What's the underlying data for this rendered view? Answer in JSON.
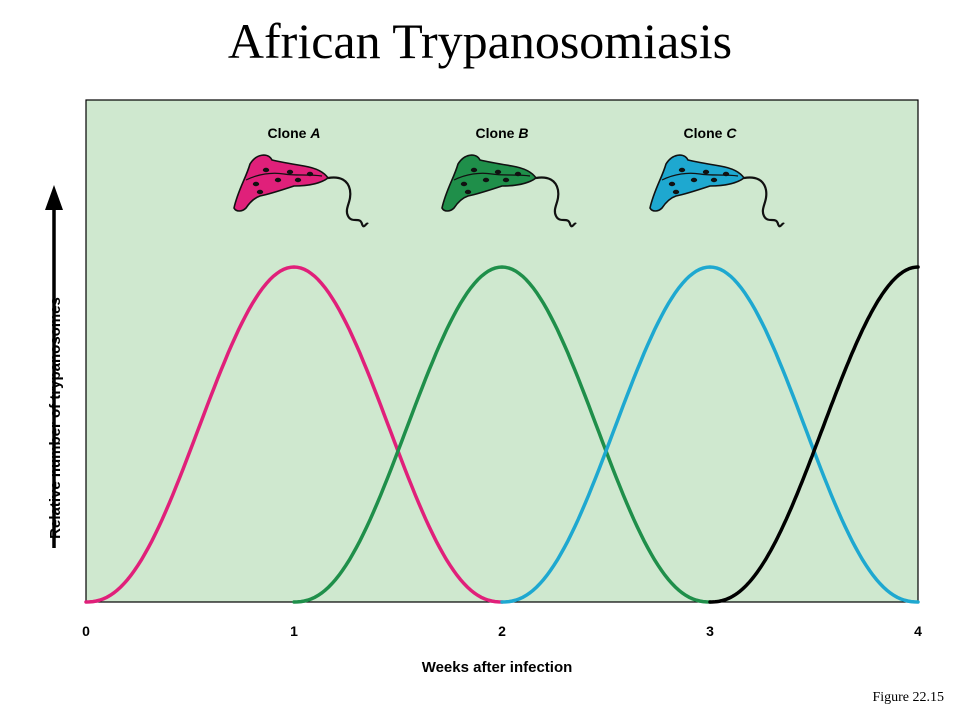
{
  "title": "African Trypanosomiasis",
  "figure_caption": "Figure 22.15",
  "colors": {
    "plot_background": "#cfe8cf",
    "clone_a": "#e0207a",
    "clone_b": "#1f8f4a",
    "clone_c": "#1ea8d0",
    "next_clone": "#000000"
  },
  "chart_data": {
    "type": "line",
    "title": "African Trypanosomiasis",
    "xlabel": "Weeks after infection",
    "ylabel": "Relative number of trypanosomes",
    "xlim": [
      0,
      4
    ],
    "ylim": [
      0,
      1
    ],
    "x_ticks": [
      "0",
      "1",
      "2",
      "3",
      "4"
    ],
    "grid": false,
    "series": [
      {
        "name": "Clone A",
        "color": "#e0207a",
        "x": [
          0,
          0.25,
          0.5,
          0.75,
          1.0,
          1.25,
          1.5,
          1.75,
          2.0
        ],
        "y": [
          0,
          0.15,
          0.5,
          0.85,
          1.0,
          0.85,
          0.5,
          0.15,
          0
        ]
      },
      {
        "name": "Clone B",
        "color": "#1f8f4a",
        "x": [
          1.0,
          1.25,
          1.5,
          1.75,
          2.0,
          2.25,
          2.5,
          2.75,
          3.0
        ],
        "y": [
          0,
          0.15,
          0.5,
          0.85,
          1.0,
          0.85,
          0.5,
          0.15,
          0
        ]
      },
      {
        "name": "Clone C",
        "color": "#1ea8d0",
        "x": [
          2.0,
          2.25,
          2.5,
          2.75,
          3.0,
          3.25,
          3.5,
          3.75,
          4.0
        ],
        "y": [
          0,
          0.15,
          0.5,
          0.85,
          1.0,
          0.85,
          0.5,
          0.15,
          0
        ]
      },
      {
        "color": "#000000",
        "x": [
          3.0,
          3.25,
          3.5,
          3.75,
          4.0
        ],
        "y": [
          0,
          0.15,
          0.5,
          0.85,
          1.0
        ]
      }
    ],
    "annotations": [
      {
        "text": "Clone A",
        "x": 1,
        "color": "#e0207a"
      },
      {
        "text": "Clone B",
        "x": 2,
        "color": "#1f8f4a"
      },
      {
        "text": "Clone C",
        "x": 3,
        "color": "#1ea8d0"
      }
    ]
  }
}
